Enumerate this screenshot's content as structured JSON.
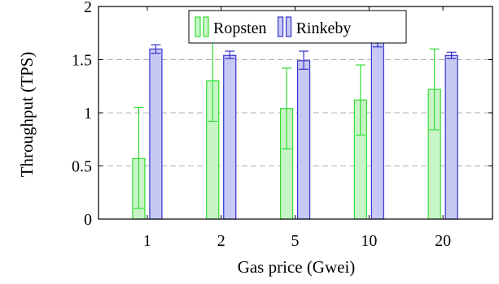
{
  "chart_data": {
    "type": "bar",
    "title": "",
    "xlabel": "Gas price (Gwei)",
    "ylabel": "Throughput (TPS)",
    "categories": [
      "1",
      "2",
      "5",
      "10",
      "20"
    ],
    "ylim": [
      0,
      2
    ],
    "yticks": [
      "0",
      "0.5",
      "1",
      "1.5",
      "2"
    ],
    "grid": "horizontal-dashed",
    "legend_position": "top-right",
    "series": [
      {
        "name": "Ropsten",
        "color": "#33dd33",
        "fill": "#c8f5c8",
        "values": [
          0.57,
          1.3,
          1.04,
          1.12,
          1.22
        ],
        "error_low": [
          0.1,
          0.92,
          0.66,
          0.79,
          0.84
        ],
        "error_high": [
          1.05,
          1.68,
          1.42,
          1.45,
          1.6
        ]
      },
      {
        "name": "Rinkeby",
        "color": "#3333cc",
        "fill": "#c8c8f5",
        "values": [
          1.6,
          1.54,
          1.49,
          1.67,
          1.54
        ],
        "error_low": [
          1.56,
          1.51,
          1.41,
          1.62,
          1.51
        ],
        "error_high": [
          1.64,
          1.58,
          1.58,
          1.72,
          1.57
        ]
      }
    ]
  }
}
